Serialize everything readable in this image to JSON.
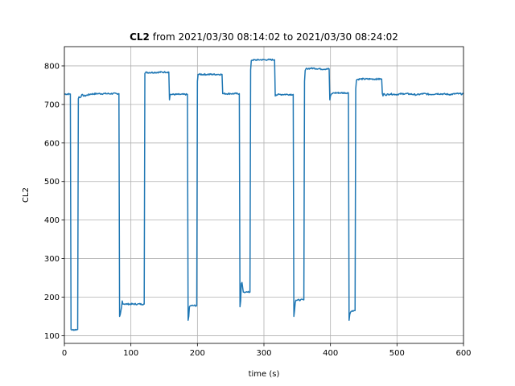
{
  "chart_data": {
    "type": "line",
    "title_bold": "CL2",
    "title_rest": " from 2021/03/30 08:14:02 to 2021/03/30 08:24:02",
    "xlabel": "time (s)",
    "ylabel": "CL2",
    "xlim": [
      0,
      600
    ],
    "ylim": [
      80,
      850
    ],
    "xticks": [
      0,
      100,
      200,
      300,
      400,
      500,
      600
    ],
    "yticks": [
      100,
      200,
      300,
      400,
      500,
      600,
      700,
      800
    ],
    "grid": true,
    "color": "#1f77b4",
    "x": [
      0,
      9,
      10,
      11,
      20,
      21,
      22,
      24,
      26,
      30,
      40,
      50,
      60,
      70,
      82,
      83,
      84,
      86,
      87,
      88,
      89,
      90,
      95,
      110,
      120,
      121,
      122,
      135,
      150,
      157,
      158,
      159,
      161,
      175,
      185,
      186,
      187,
      188,
      190,
      195,
      199,
      200,
      201,
      202,
      215,
      230,
      237,
      238,
      240,
      250,
      263,
      264,
      265,
      266,
      267,
      268,
      269,
      270,
      272,
      273,
      275,
      279,
      280,
      281,
      282,
      295,
      305,
      316,
      317,
      318,
      325,
      335,
      344,
      345,
      346,
      347,
      348,
      350,
      355,
      360,
      361,
      362,
      363,
      365,
      375,
      385,
      398,
      399,
      400,
      402,
      405,
      415,
      427,
      428,
      429,
      430,
      431,
      433,
      435,
      437,
      438,
      439,
      440,
      445,
      460,
      477,
      478,
      479,
      480,
      482,
      490,
      500,
      510,
      520,
      530,
      540,
      550,
      560,
      570,
      580,
      590,
      600
    ],
    "y": [
      727,
      727,
      116,
      115,
      116,
      715,
      720,
      718,
      725,
      722,
      727,
      728,
      728,
      728,
      728,
      150,
      155,
      175,
      190,
      182,
      182,
      182,
      182,
      182,
      182,
      780,
      783,
      783,
      784,
      784,
      712,
      726,
      726,
      726,
      726,
      140,
      150,
      175,
      178,
      178,
      178,
      760,
      778,
      778,
      778,
      778,
      778,
      728,
      728,
      728,
      728,
      175,
      190,
      235,
      238,
      225,
      213,
      213,
      213,
      213,
      213,
      213,
      790,
      814,
      815,
      816,
      816,
      816,
      722,
      725,
      726,
      726,
      726,
      150,
      165,
      185,
      192,
      192,
      193,
      193,
      760,
      788,
      792,
      793,
      794,
      792,
      792,
      712,
      722,
      728,
      730,
      730,
      730,
      140,
      155,
      160,
      163,
      165,
      165,
      165,
      740,
      762,
      765,
      766,
      766,
      766,
      728,
      722,
      728,
      725,
      727,
      726,
      728,
      727,
      725,
      728,
      726,
      728,
      727,
      726,
      728,
      727
    ]
  }
}
